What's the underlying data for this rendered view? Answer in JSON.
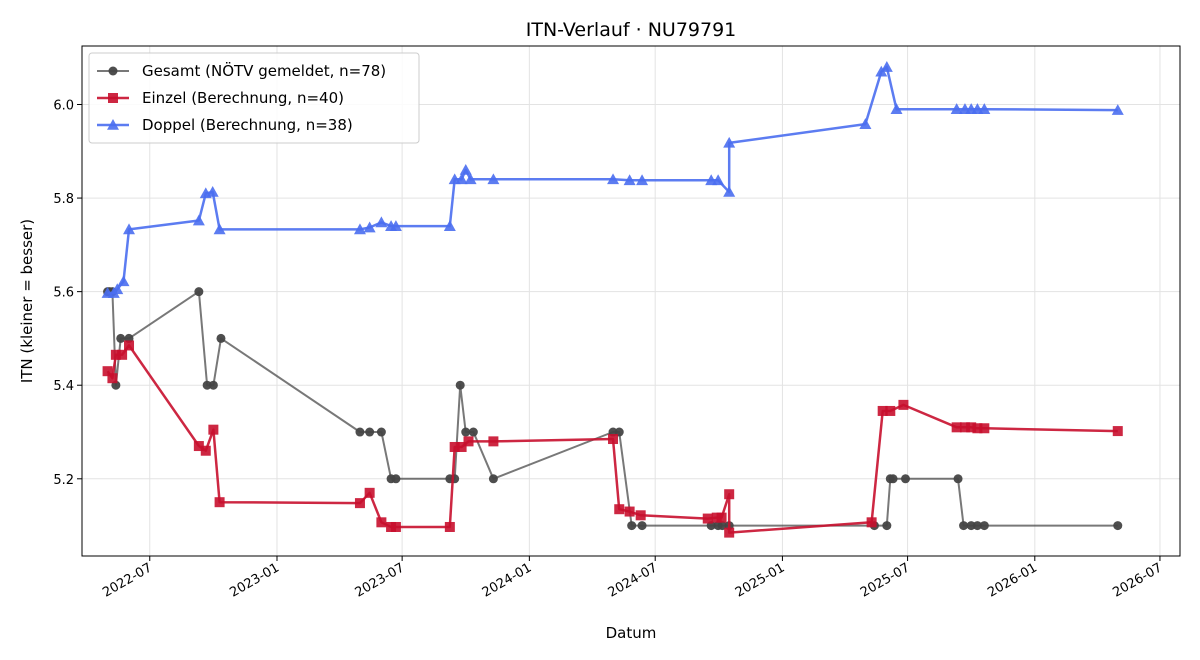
{
  "chart_data": {
    "type": "line",
    "title": "ITN-Verlauf · NU79791",
    "xlabel": "Datum",
    "ylabel": "ITN  (kleiner = besser)",
    "x_tick_labels": [
      "2022-07",
      "2023-01",
      "2023-07",
      "2024-01",
      "2024-07",
      "2025-01",
      "2025-07",
      "2026-01",
      "2026-07"
    ],
    "x_ticks": [
      "2022-07-01",
      "2023-01-01",
      "2023-07-01",
      "2024-01-01",
      "2024-07-01",
      "2025-01-01",
      "2025-07-01",
      "2026-01-01",
      "2026-07-01"
    ],
    "xlim": [
      "2022-03-25",
      "2026-07-30"
    ],
    "y_ticks": [
      5.2,
      5.4,
      5.6,
      5.8,
      6.0
    ],
    "y_tick_labels": [
      "5.2",
      "5.4",
      "5.6",
      "5.8",
      "6.0"
    ],
    "ylim": [
      5.035,
      6.125
    ],
    "grid": true,
    "legend_position": "top-left",
    "series": [
      {
        "name": "Gesamt (NÖTV gemeldet, n=78)",
        "color": "#444444",
        "marker": "circle",
        "points": [
          [
            "2022-05-01",
            5.6
          ],
          [
            "2022-05-04",
            5.6
          ],
          [
            "2022-05-08",
            5.6
          ],
          [
            "2022-05-13",
            5.4
          ],
          [
            "2022-05-20",
            5.5
          ],
          [
            "2022-06-01",
            5.5
          ],
          [
            "2022-09-10",
            5.6
          ],
          [
            "2022-09-22",
            5.4
          ],
          [
            "2022-10-01",
            5.4
          ],
          [
            "2022-10-12",
            5.5
          ],
          [
            "2023-05-01",
            5.3
          ],
          [
            "2023-05-15",
            5.3
          ],
          [
            "2023-06-01",
            5.3
          ],
          [
            "2023-06-15",
            5.2
          ],
          [
            "2023-06-22",
            5.2
          ],
          [
            "2023-09-08",
            5.2
          ],
          [
            "2023-09-15",
            5.2
          ],
          [
            "2023-09-23",
            5.4
          ],
          [
            "2023-10-01",
            5.3
          ],
          [
            "2023-10-12",
            5.3
          ],
          [
            "2023-11-10",
            5.2
          ],
          [
            "2024-05-01",
            5.3
          ],
          [
            "2024-05-10",
            5.3
          ],
          [
            "2024-05-28",
            5.1
          ],
          [
            "2024-06-12",
            5.1
          ],
          [
            "2024-09-20",
            5.1
          ],
          [
            "2024-09-30",
            5.1
          ],
          [
            "2024-10-06",
            5.1
          ],
          [
            "2024-10-16",
            5.1
          ],
          [
            "2025-05-14",
            5.1
          ],
          [
            "2025-06-01",
            5.1
          ],
          [
            "2025-06-06",
            5.2
          ],
          [
            "2025-06-10",
            5.2
          ],
          [
            "2025-06-28",
            5.2
          ],
          [
            "2025-09-12",
            5.2
          ],
          [
            "2025-09-20",
            5.1
          ],
          [
            "2025-10-01",
            5.1
          ],
          [
            "2025-10-10",
            5.1
          ],
          [
            "2025-10-20",
            5.1
          ],
          [
            "2026-05-01",
            5.1
          ]
        ]
      },
      {
        "name": "Einzel (Berechnung, n=40)",
        "color": "#c8102e",
        "marker": "square",
        "points": [
          [
            "2022-05-01",
            5.43
          ],
          [
            "2022-05-08",
            5.415
          ],
          [
            "2022-05-13",
            5.465
          ],
          [
            "2022-05-22",
            5.465
          ],
          [
            "2022-06-01",
            5.485
          ],
          [
            "2022-09-10",
            5.27
          ],
          [
            "2022-09-20",
            5.26
          ],
          [
            "2022-10-01",
            5.305
          ],
          [
            "2022-10-10",
            5.15
          ],
          [
            "2023-05-01",
            5.148
          ],
          [
            "2023-05-15",
            5.17
          ],
          [
            "2023-06-01",
            5.107
          ],
          [
            "2023-06-15",
            5.097
          ],
          [
            "2023-06-22",
            5.097
          ],
          [
            "2023-09-08",
            5.097
          ],
          [
            "2023-09-15",
            5.268
          ],
          [
            "2023-09-25",
            5.268
          ],
          [
            "2023-10-05",
            5.28
          ],
          [
            "2023-11-10",
            5.28
          ],
          [
            "2024-05-01",
            5.285
          ],
          [
            "2024-05-10",
            5.135
          ],
          [
            "2024-05-25",
            5.13
          ],
          [
            "2024-06-10",
            5.122
          ],
          [
            "2024-09-15",
            5.115
          ],
          [
            "2024-09-28",
            5.117
          ],
          [
            "2024-10-05",
            5.117
          ],
          [
            "2024-10-16",
            5.167
          ],
          [
            "2024-10-16",
            5.085
          ],
          [
            "2025-05-10",
            5.107
          ],
          [
            "2025-05-26",
            5.345
          ],
          [
            "2025-06-06",
            5.345
          ],
          [
            "2025-06-25",
            5.358
          ],
          [
            "2025-09-10",
            5.31
          ],
          [
            "2025-09-22",
            5.31
          ],
          [
            "2025-10-01",
            5.31
          ],
          [
            "2025-10-10",
            5.308
          ],
          [
            "2025-10-20",
            5.308
          ],
          [
            "2026-05-01",
            5.302
          ]
        ]
      },
      {
        "name": "Doppel (Berechnung, n=38)",
        "color": "#4a6ef0",
        "marker": "triangle",
        "points": [
          [
            "2022-05-01",
            5.597
          ],
          [
            "2022-05-10",
            5.597
          ],
          [
            "2022-05-15",
            5.605
          ],
          [
            "2022-05-24",
            5.622
          ],
          [
            "2022-06-01",
            5.733
          ],
          [
            "2022-09-10",
            5.752
          ],
          [
            "2022-09-20",
            5.81
          ],
          [
            "2022-09-30",
            5.813
          ],
          [
            "2022-10-10",
            5.733
          ],
          [
            "2023-05-01",
            5.733
          ],
          [
            "2023-05-15",
            5.737
          ],
          [
            "2023-06-01",
            5.748
          ],
          [
            "2023-06-15",
            5.74
          ],
          [
            "2023-06-22",
            5.74
          ],
          [
            "2023-09-08",
            5.74
          ],
          [
            "2023-09-15",
            5.84
          ],
          [
            "2023-09-25",
            5.84
          ],
          [
            "2023-10-01",
            5.86
          ],
          [
            "2023-10-08",
            5.84
          ],
          [
            "2023-11-10",
            5.84
          ],
          [
            "2024-05-01",
            5.84
          ],
          [
            "2024-05-25",
            5.838
          ],
          [
            "2024-06-12",
            5.838
          ],
          [
            "2024-09-20",
            5.838
          ],
          [
            "2024-09-30",
            5.838
          ],
          [
            "2024-10-16",
            5.813
          ],
          [
            "2024-10-16",
            5.918
          ],
          [
            "2025-05-01",
            5.958
          ],
          [
            "2025-05-24",
            6.07
          ],
          [
            "2025-06-01",
            6.08
          ],
          [
            "2025-06-15",
            5.99
          ],
          [
            "2025-09-10",
            5.99
          ],
          [
            "2025-09-22",
            5.99
          ],
          [
            "2025-10-01",
            5.99
          ],
          [
            "2025-10-10",
            5.99
          ],
          [
            "2025-10-20",
            5.99
          ],
          [
            "2026-05-01",
            5.988
          ]
        ]
      }
    ]
  }
}
